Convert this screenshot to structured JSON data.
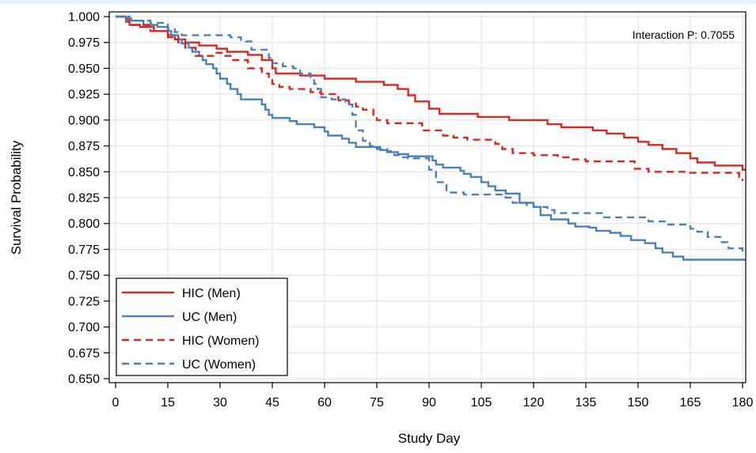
{
  "chart_data": {
    "type": "line",
    "step": true,
    "xlabel": "Study Day",
    "ylabel": "Survival Probability",
    "xlim": [
      0,
      181
    ],
    "ylim": [
      0.65,
      1.0
    ],
    "xticks": [
      0,
      15,
      30,
      45,
      60,
      75,
      90,
      105,
      120,
      135,
      150,
      165,
      180
    ],
    "xtick_labels": [
      "0",
      "15",
      "30",
      "45",
      "60",
      "75",
      "90",
      "105",
      "120",
      "135",
      "150",
      "165",
      "180"
    ],
    "yticks": [
      0.65,
      0.675,
      0.7,
      0.725,
      0.75,
      0.775,
      0.8,
      0.825,
      0.85,
      0.875,
      0.9,
      0.925,
      0.95,
      0.975,
      1.0
    ],
    "ytick_labels": [
      "0.650",
      "0.675",
      "0.700",
      "0.725",
      "0.750",
      "0.775",
      "0.800",
      "0.825",
      "0.850",
      "0.875",
      "0.900",
      "0.925",
      "0.950",
      "0.975",
      "1.000"
    ],
    "grid": true,
    "annotation": "Interaction P: 0.7055",
    "legend_position": "bottom-left",
    "series": [
      {
        "name": "HIC (Men)",
        "color": "#d7291e",
        "dash": "solid",
        "points": [
          [
            0,
            1.0
          ],
          [
            3,
            0.995
          ],
          [
            4,
            0.992
          ],
          [
            7,
            0.99
          ],
          [
            11,
            0.986
          ],
          [
            15,
            0.982
          ],
          [
            17,
            0.978
          ],
          [
            20,
            0.975
          ],
          [
            24,
            0.972
          ],
          [
            29,
            0.969
          ],
          [
            32,
            0.966
          ],
          [
            38,
            0.963
          ],
          [
            42,
            0.958
          ],
          [
            45,
            0.95
          ],
          [
            46,
            0.945
          ],
          [
            53,
            0.943
          ],
          [
            60,
            0.94
          ],
          [
            69,
            0.937
          ],
          [
            77,
            0.934
          ],
          [
            81,
            0.93
          ],
          [
            84,
            0.924
          ],
          [
            86,
            0.918
          ],
          [
            90,
            0.911
          ],
          [
            93,
            0.906
          ],
          [
            104,
            0.903
          ],
          [
            113,
            0.9
          ],
          [
            124,
            0.896
          ],
          [
            128,
            0.893
          ],
          [
            137,
            0.89
          ],
          [
            141,
            0.887
          ],
          [
            146,
            0.883
          ],
          [
            150,
            0.879
          ],
          [
            153,
            0.876
          ],
          [
            157,
            0.872
          ],
          [
            161,
            0.868
          ],
          [
            165,
            0.863
          ],
          [
            167,
            0.859
          ],
          [
            172,
            0.856
          ],
          [
            180,
            0.852
          ],
          [
            181,
            0.852
          ]
        ]
      },
      {
        "name": "UC (Men)",
        "color": "#4a81bd",
        "dash": "solid",
        "points": [
          [
            0,
            1.0
          ],
          [
            1,
            1.0
          ],
          [
            3,
            0.996
          ],
          [
            8,
            0.992
          ],
          [
            12,
            0.99
          ],
          [
            15,
            0.986
          ],
          [
            16,
            0.982
          ],
          [
            18,
            0.978
          ],
          [
            19,
            0.974
          ],
          [
            21,
            0.97
          ],
          [
            22,
            0.966
          ],
          [
            24,
            0.962
          ],
          [
            25,
            0.958
          ],
          [
            26,
            0.954
          ],
          [
            28,
            0.95
          ],
          [
            29,
            0.945
          ],
          [
            30,
            0.94
          ],
          [
            32,
            0.935
          ],
          [
            33,
            0.93
          ],
          [
            35,
            0.925
          ],
          [
            36,
            0.92
          ],
          [
            42,
            0.915
          ],
          [
            43,
            0.91
          ],
          [
            44,
            0.905
          ],
          [
            45,
            0.902
          ],
          [
            50,
            0.899
          ],
          [
            52,
            0.896
          ],
          [
            57,
            0.893
          ],
          [
            60,
            0.889
          ],
          [
            61,
            0.885
          ],
          [
            65,
            0.882
          ],
          [
            67,
            0.878
          ],
          [
            69,
            0.874
          ],
          [
            76,
            0.871
          ],
          [
            78,
            0.869
          ],
          [
            81,
            0.867
          ],
          [
            84,
            0.865
          ],
          [
            91,
            0.861
          ],
          [
            92,
            0.857
          ],
          [
            94,
            0.854
          ],
          [
            99,
            0.851
          ],
          [
            100,
            0.848
          ],
          [
            102,
            0.845
          ],
          [
            105,
            0.84
          ],
          [
            107,
            0.836
          ],
          [
            109,
            0.832
          ],
          [
            112,
            0.829
          ],
          [
            116,
            0.82
          ],
          [
            120,
            0.816
          ],
          [
            122,
            0.808
          ],
          [
            125,
            0.804
          ],
          [
            130,
            0.8
          ],
          [
            132,
            0.797
          ],
          [
            136,
            0.796
          ],
          [
            138,
            0.793
          ],
          [
            142,
            0.791
          ],
          [
            145,
            0.788
          ],
          [
            148,
            0.784
          ],
          [
            152,
            0.781
          ],
          [
            155,
            0.776
          ],
          [
            157,
            0.772
          ],
          [
            160,
            0.768
          ],
          [
            163,
            0.765
          ],
          [
            181,
            0.765
          ]
        ]
      },
      {
        "name": "HIC (Women)",
        "color": "#d7291e",
        "dash": "dashed",
        "points": [
          [
            0,
            1.0
          ],
          [
            2,
            0.998
          ],
          [
            4,
            0.992
          ],
          [
            10,
            0.986
          ],
          [
            15,
            0.98
          ],
          [
            18,
            0.975
          ],
          [
            20,
            0.97
          ],
          [
            23,
            0.962
          ],
          [
            28,
            0.965
          ],
          [
            31,
            0.962
          ],
          [
            33,
            0.958
          ],
          [
            38,
            0.95
          ],
          [
            42,
            0.945
          ],
          [
            44,
            0.94
          ],
          [
            45,
            0.935
          ],
          [
            47,
            0.932
          ],
          [
            50,
            0.93
          ],
          [
            56,
            0.927
          ],
          [
            59,
            0.925
          ],
          [
            63,
            0.922
          ],
          [
            64,
            0.919
          ],
          [
            67,
            0.916
          ],
          [
            69,
            0.913
          ],
          [
            71,
            0.91
          ],
          [
            74,
            0.905
          ],
          [
            75,
            0.9
          ],
          [
            78,
            0.897
          ],
          [
            88,
            0.89
          ],
          [
            94,
            0.885
          ],
          [
            97,
            0.883
          ],
          [
            101,
            0.881
          ],
          [
            109,
            0.877
          ],
          [
            111,
            0.872
          ],
          [
            114,
            0.868
          ],
          [
            120,
            0.866
          ],
          [
            127,
            0.864
          ],
          [
            130,
            0.862
          ],
          [
            135,
            0.86
          ],
          [
            149,
            0.853
          ],
          [
            153,
            0.85
          ],
          [
            164,
            0.849
          ],
          [
            177,
            0.849
          ],
          [
            179,
            0.845
          ],
          [
            180,
            0.841
          ]
        ]
      },
      {
        "name": "UC (Women)",
        "color": "#4a81bd",
        "dash": "dashed",
        "points": [
          [
            0,
            1.0
          ],
          [
            4,
            0.998
          ],
          [
            6,
            0.996
          ],
          [
            10,
            0.994
          ],
          [
            15,
            0.988
          ],
          [
            17,
            0.985
          ],
          [
            19,
            0.982
          ],
          [
            25,
            0.982
          ],
          [
            33,
            0.98
          ],
          [
            36,
            0.976
          ],
          [
            39,
            0.968
          ],
          [
            44,
            0.96
          ],
          [
            45,
            0.955
          ],
          [
            48,
            0.952
          ],
          [
            51,
            0.95
          ],
          [
            53,
            0.945
          ],
          [
            56,
            0.94
          ],
          [
            57,
            0.935
          ],
          [
            58,
            0.93
          ],
          [
            59,
            0.922
          ],
          [
            62,
            0.92
          ],
          [
            66,
            0.915
          ],
          [
            68,
            0.905
          ],
          [
            69,
            0.89
          ],
          [
            71,
            0.88
          ],
          [
            73,
            0.875
          ],
          [
            75,
            0.872
          ],
          [
            78,
            0.87
          ],
          [
            80,
            0.866
          ],
          [
            82,
            0.864
          ],
          [
            84,
            0.863
          ],
          [
            90,
            0.852
          ],
          [
            92,
            0.84
          ],
          [
            95,
            0.83
          ],
          [
            100,
            0.828
          ],
          [
            112,
            0.825
          ],
          [
            114,
            0.82
          ],
          [
            118,
            0.818
          ],
          [
            120,
            0.816
          ],
          [
            124,
            0.813
          ],
          [
            126,
            0.81
          ],
          [
            137,
            0.81
          ],
          [
            140,
            0.806
          ],
          [
            151,
            0.806
          ],
          [
            153,
            0.802
          ],
          [
            158,
            0.799
          ],
          [
            165,
            0.795
          ],
          [
            167,
            0.792
          ],
          [
            170,
            0.787
          ],
          [
            174,
            0.782
          ],
          [
            176,
            0.776
          ],
          [
            180,
            0.773
          ],
          [
            181,
            0.773
          ]
        ]
      }
    ]
  }
}
